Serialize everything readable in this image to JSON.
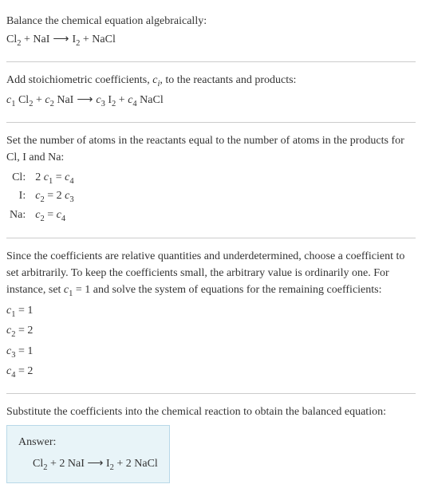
{
  "section1": {
    "line1": "Balance the chemical equation algebraically:",
    "reaction_lhs1": "Cl",
    "reaction_lhs1_sub": "2",
    "plus1": " + ",
    "reaction_lhs2": "NaI",
    "arrow": "⟶",
    "reaction_rhs1": "I",
    "reaction_rhs1_sub": "2",
    "plus2": " + ",
    "reaction_rhs2": "NaCl"
  },
  "section2": {
    "line1a": "Add stoichiometric coefficients, ",
    "line1b": "c",
    "line1b_sub": "i",
    "line1c": ", to the reactants and products:",
    "c1": "c",
    "c1_sub": "1",
    "sp1": " Cl",
    "sp1_sub": "2",
    "plus1": " + ",
    "c2": "c",
    "c2_sub": "2",
    "sp2": " NaI",
    "arrow": "⟶",
    "c3": "c",
    "c3_sub": "3",
    "sp3": " I",
    "sp3_sub": "2",
    "plus2": " + ",
    "c4": "c",
    "c4_sub": "4",
    "sp4": " NaCl"
  },
  "section3": {
    "line1": "Set the number of atoms in the reactants equal to the number of atoms in the products for Cl, I and Na:",
    "rows": [
      {
        "label": "Cl:",
        "eq_a": "2 ",
        "eq_b": "c",
        "eq_b_sub": "1",
        "eq_c": " = ",
        "eq_d": "c",
        "eq_d_sub": "4"
      },
      {
        "label": "I:",
        "eq_a": "",
        "eq_b": "c",
        "eq_b_sub": "2",
        "eq_c": " = 2 ",
        "eq_d": "c",
        "eq_d_sub": "3"
      },
      {
        "label": "Na:",
        "eq_a": "",
        "eq_b": "c",
        "eq_b_sub": "2",
        "eq_c": " = ",
        "eq_d": "c",
        "eq_d_sub": "4"
      }
    ]
  },
  "section4": {
    "para_a": "Since the coefficients are relative quantities and underdetermined, choose a coefficient to set arbitrarily. To keep the coefficients small, the arbitrary value is ordinarily one. For instance, set ",
    "para_b": "c",
    "para_b_sub": "1",
    "para_c": " = 1 and solve the system of equations for the remaining coefficients:",
    "coeffs": [
      {
        "c": "c",
        "sub": "1",
        "val": " = 1"
      },
      {
        "c": "c",
        "sub": "2",
        "val": " = 2"
      },
      {
        "c": "c",
        "sub": "3",
        "val": " = 1"
      },
      {
        "c": "c",
        "sub": "4",
        "val": " = 2"
      }
    ]
  },
  "section5": {
    "line1": "Substitute the coefficients into the chemical reaction to obtain the balanced equation:",
    "answer_label": "Answer:",
    "eq_a": "Cl",
    "eq_a_sub": "2",
    "eq_b": " + 2 NaI ",
    "arrow": "⟶",
    "eq_c": " I",
    "eq_c_sub": "2",
    "eq_d": " + 2 NaCl"
  }
}
